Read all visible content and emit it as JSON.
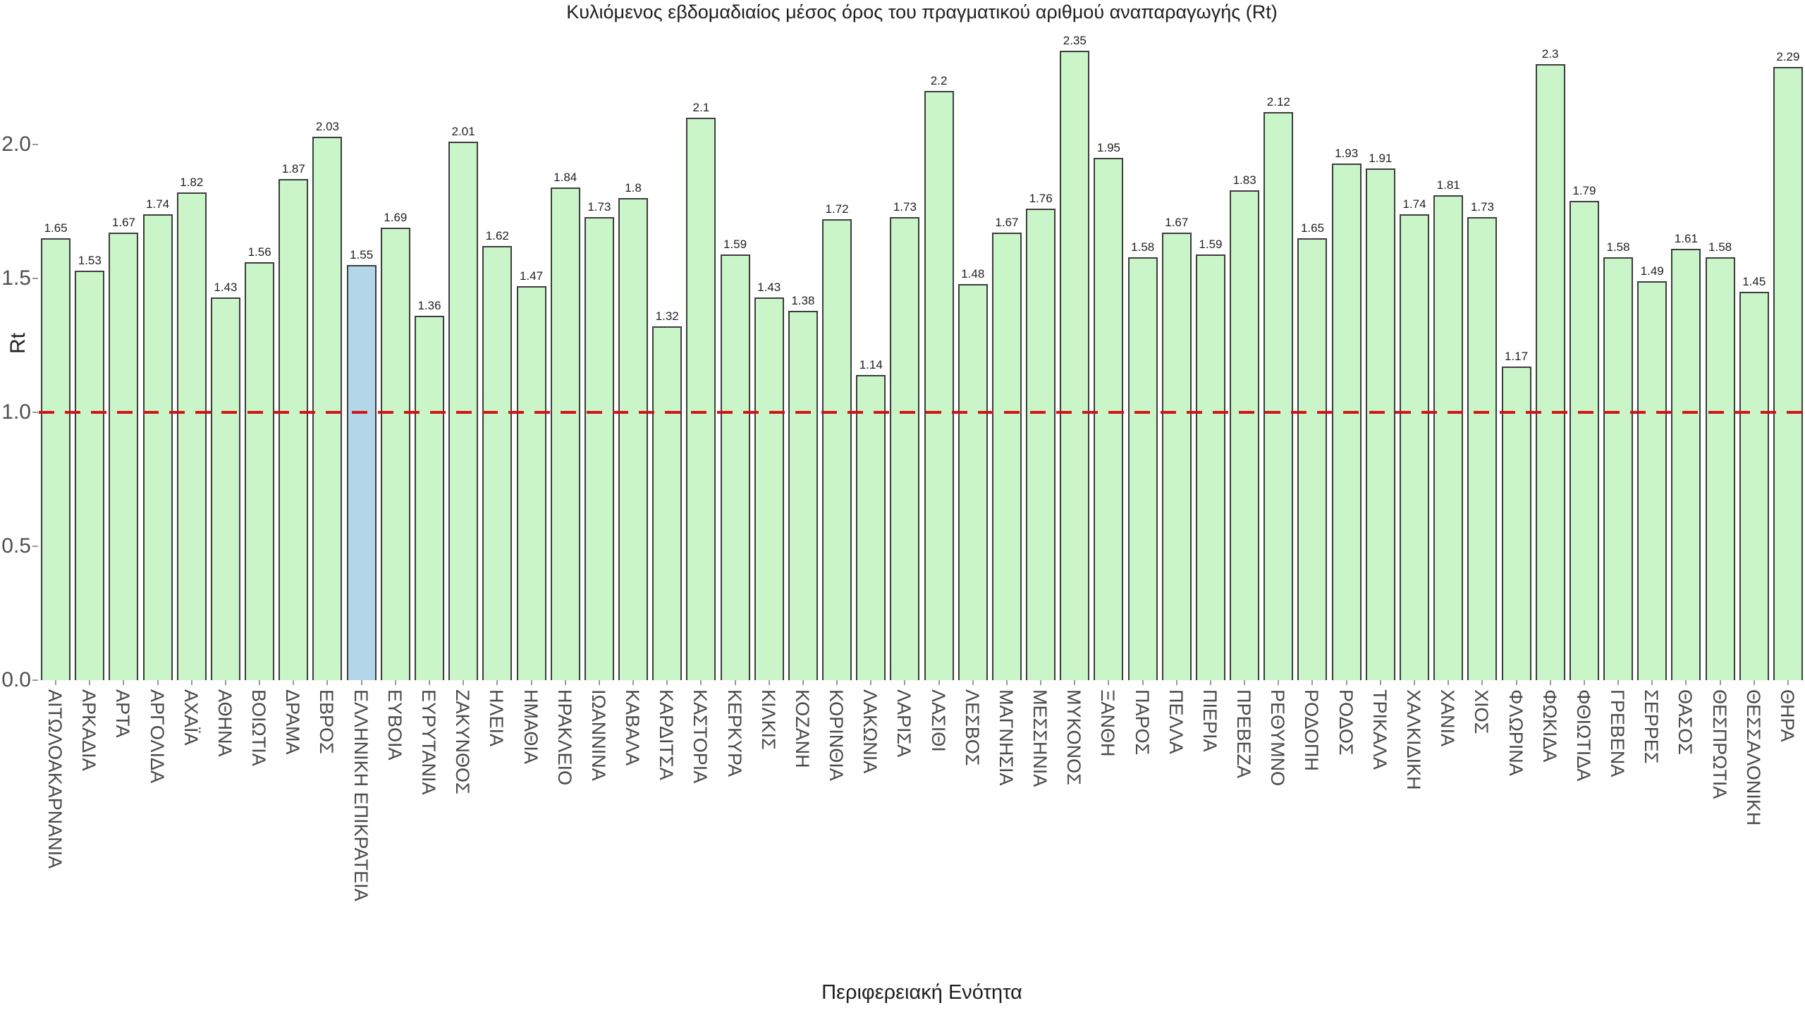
{
  "chart_data": {
    "type": "bar",
    "title": "Κυλιόμενος εβδομαδιαίος μέσος όρος του πραγματικού αριθμού αναπαραγωγής (Rt)",
    "xlabel": "Περιφερειακή Ενότητα",
    "ylabel": "Rt",
    "ylim": [
      0,
      2.45
    ],
    "yticks": [
      "2.0",
      "1.5",
      "1.0",
      "0.5",
      "0.0"
    ],
    "ytick_values": [
      2.0,
      1.5,
      1.0,
      0.5,
      0.0
    ],
    "grid": false,
    "legend": "none",
    "reference_line": {
      "value": 1.0,
      "style": "dashed",
      "color": "#d41414"
    },
    "highlight_category": "ΕΛΛΗΝΙΚΗ ΕΠΙΚΡΑΤΕΙΑ",
    "colors": {
      "bar_fill": "#c9f5c9",
      "highlight_fill": "#b3d7e8",
      "bar_border": "#3d3d3d",
      "reference_line": "#d41414"
    },
    "categories": [
      "ΑΙΤΩΛΟΑΚΑΡΝΑΝΙΑ",
      "ΑΡΚΑΔΙΑ",
      "ΑΡΤΑ",
      "ΑΡΓΟΛΙΔΑ",
      "ΑΧΑΪΑ",
      "ΑΘΗΝΑ",
      "ΒΟΙΩΤΙΑ",
      "ΔΡΑΜΑ",
      "ΕΒΡΟΣ",
      "ΕΛΛΗΝΙΚΗ ΕΠΙΚΡΑΤΕΙΑ",
      "ΕΥΒΟΙΑ",
      "ΕΥΡΥΤΑΝΙΑ",
      "ΖΑΚΥΝΘΟΣ",
      "ΗΛΕΙΑ",
      "ΗΜΑΘΙΑ",
      "ΗΡΑΚΛΕΙΟ",
      "ΙΩΑΝΝΙΝΑ",
      "ΚΑΒΑΛΑ",
      "ΚΑΡΔΙΤΣΑ",
      "ΚΑΣΤΟΡΙΑ",
      "ΚΕΡΚΥΡΑ",
      "ΚΙΛΚΙΣ",
      "ΚΟΖΑΝΗ",
      "ΚΟΡΙΝΘΙΑ",
      "ΛΑΚΩΝΙΑ",
      "ΛΑΡΙΣΑ",
      "ΛΑΣΙΘΙ",
      "ΛΕΣΒΟΣ",
      "ΜΑΓΝΗΣΙΑ",
      "ΜΕΣΣΗΝΙΑ",
      "ΜΥΚΟΝΟΣ",
      "ΞΑΝΘΗ",
      "ΠΑΡΟΣ",
      "ΠΕΛΛΑ",
      "ΠΙΕΡΙΑ",
      "ΠΡΕΒΕΖΑ",
      "ΡΕΘΥΜΝΟ",
      "ΡΟΔΟΠΗ",
      "ΡΟΔΟΣ",
      "ΤΡΙΚΑΛΑ",
      "ΧΑΛΚΙΔΙΚΗ",
      "ΧΑΝΙΑ",
      "ΧΙΟΣ",
      "ΦΛΩΡΙΝΑ",
      "ΦΩΚΙΔΑ",
      "ΦΘΙΩΤΙΔΑ",
      "ΓΡΕΒΕΝΑ",
      "ΣΕΡΡΕΣ",
      "ΘΑΣΟΣ",
      "ΘΕΣΠΡΩΤΙΑ",
      "ΘΕΣΣΑΛΟΝΙΚΗ",
      "ΘΗΡΑ"
    ],
    "values": [
      "1.65",
      "1.53",
      "1.67",
      "1.74",
      "1.82",
      "1.43",
      "1.56",
      "1.87",
      "2.03",
      "1.55",
      "1.69",
      "1.36",
      "2.01",
      "1.62",
      "1.47",
      "1.84",
      "1.73",
      "1.8",
      "1.32",
      "2.1",
      "1.59",
      "1.43",
      "1.38",
      "1.72",
      "1.14",
      "1.73",
      "2.2",
      "1.48",
      "1.67",
      "1.76",
      "2.35",
      "1.95",
      "1.58",
      "1.67",
      "1.59",
      "1.83",
      "2.12",
      "1.65",
      "1.93",
      "1.91",
      "1.74",
      "1.81",
      "1.73",
      "1.17",
      "2.3",
      "1.79",
      "1.58",
      "1.49",
      "1.61",
      "1.58",
      "1.45",
      "2.29"
    ]
  }
}
